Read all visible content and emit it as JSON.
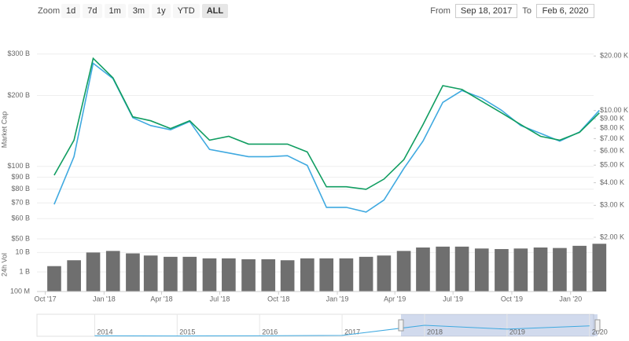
{
  "range_selector": {
    "zoom_label": "Zoom",
    "buttons": [
      "1d",
      "7d",
      "1m",
      "3m",
      "1y",
      "YTD",
      "ALL"
    ],
    "active": "ALL",
    "from_label": "From",
    "from": "Sep 18, 2017",
    "to_label": "To",
    "to": "Feb 6, 2020"
  },
  "chart_data": [
    {
      "type": "line",
      "y_label": "Market Cap",
      "log": true,
      "x": [
        "2017-10",
        "2017-11",
        "2017-12",
        "2018-01",
        "2018-02",
        "2018-03",
        "2018-04",
        "2018-05",
        "2018-06",
        "2018-07",
        "2018-08",
        "2018-09",
        "2018-10",
        "2018-11",
        "2018-12",
        "2019-01",
        "2019-02",
        "2019-03",
        "2019-04",
        "2019-05",
        "2019-06",
        "2019-07",
        "2019-08",
        "2019-09",
        "2019-10",
        "2019-11",
        "2019-12",
        "2020-01",
        "2020-02"
      ],
      "xlim": [
        "2017-09-18",
        "2020-02-06"
      ],
      "xticks": [
        {
          "value": "2017-10",
          "label": "Oct '17"
        },
        {
          "value": "2018-01",
          "label": "Jan '18"
        },
        {
          "value": "2018-04",
          "label": "Apr '18"
        },
        {
          "value": "2018-07",
          "label": "Jul '18"
        },
        {
          "value": "2018-10",
          "label": "Oct '18"
        },
        {
          "value": "2019-01",
          "label": "Jan '19"
        },
        {
          "value": "2019-04",
          "label": "Apr '19"
        },
        {
          "value": "2019-07",
          "label": "Jul '19"
        },
        {
          "value": "2019-10",
          "label": "Oct '19"
        },
        {
          "value": "2020-01",
          "label": "Jan '20"
        }
      ],
      "ylim": [
        50,
        360
      ],
      "yticks": [
        {
          "value": 60,
          "label": "$60 B"
        },
        {
          "value": 70,
          "label": "$70 B"
        },
        {
          "value": 80,
          "label": "$80 B"
        },
        {
          "value": 90,
          "label": "$90 B"
        },
        {
          "value": 100,
          "label": "$100 B"
        },
        {
          "value": 200,
          "label": "$200 B"
        },
        {
          "value": 300,
          "label": "$300 B"
        }
      ],
      "y2lim": [
        2000,
        26000
      ],
      "y2ticks": [
        {
          "value": 2000,
          "label": "$2.00 K"
        },
        {
          "value": 3000,
          "label": "$3.00 K"
        },
        {
          "value": 4000,
          "label": "$4.00 K"
        },
        {
          "value": 5000,
          "label": "$5.00 K"
        },
        {
          "value": 6000,
          "label": "$6.00 K"
        },
        {
          "value": 7000,
          "label": "$7.00 K"
        },
        {
          "value": 8000,
          "label": "$8.00 K"
        },
        {
          "value": 9000,
          "label": "$9.00 K"
        },
        {
          "value": 10000,
          "label": "$10.00 K"
        },
        {
          "value": 20000,
          "label": "$20.00 K"
        }
      ],
      "series": [
        {
          "color": "#3fa9e0",
          "values": [
            69,
            110,
            274,
            236,
            161,
            149,
            143,
            155,
            118,
            114,
            110,
            110,
            111,
            101,
            67,
            67,
            64,
            72,
            98,
            128,
            187,
            210,
            195,
            173,
            149,
            138,
            128,
            140,
            173
          ]
        },
        {
          "color": "#109d61",
          "axis": "y2",
          "values": [
            4400,
            6870,
            19400,
            15150,
            9240,
            8790,
            7960,
            8790,
            6870,
            7210,
            6530,
            6530,
            6530,
            5910,
            3800,
            3800,
            3680,
            4190,
            5360,
            8370,
            13730,
            13070,
            11260,
            9710,
            8370,
            7210,
            6870,
            7580,
            9710
          ]
        }
      ]
    },
    {
      "type": "bar",
      "y_label": "24h Vol",
      "log": true,
      "color": "#6f6f6f",
      "x": [
        "2017-10",
        "2017-11",
        "2017-12",
        "2018-01",
        "2018-02",
        "2018-03",
        "2018-04",
        "2018-05",
        "2018-06",
        "2018-07",
        "2018-08",
        "2018-09",
        "2018-10",
        "2018-11",
        "2018-12",
        "2019-01",
        "2019-02",
        "2019-03",
        "2019-04",
        "2019-05",
        "2019-06",
        "2019-07",
        "2019-08",
        "2019-09",
        "2019-10",
        "2019-11",
        "2019-12",
        "2020-01",
        "2020-02"
      ],
      "values": [
        2,
        4,
        10,
        12,
        9,
        7,
        6,
        6,
        5,
        5,
        4.5,
        4.5,
        4,
        5,
        5,
        5,
        6,
        7,
        12,
        18,
        20,
        20,
        16,
        15,
        16,
        18,
        17,
        22,
        28
      ],
      "ylim": [
        0.1,
        50
      ],
      "yticks": [
        {
          "value": 50,
          "label": "$50 B"
        },
        {
          "value": 10,
          "label": "10 B"
        },
        {
          "value": 1,
          "label": "1 B"
        },
        {
          "value": 0.1,
          "label": "100 M"
        }
      ]
    },
    {
      "type": "line",
      "color": "#3fa9e0",
      "x": [
        2014,
        2015,
        2016,
        2017,
        2018,
        2019,
        2020
      ],
      "values": [
        10,
        5,
        8,
        15,
        200,
        130,
        190
      ],
      "xlim": [
        2013.3,
        2020.05
      ],
      "ylim": [
        0,
        400
      ],
      "xticks": [
        2014,
        2015,
        2016,
        2017,
        2018,
        2019,
        2020
      ]
    }
  ]
}
